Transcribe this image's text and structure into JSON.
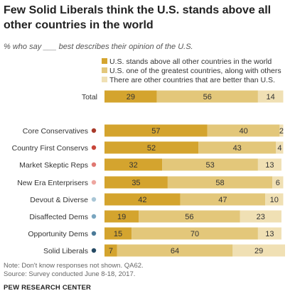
{
  "title": "Few Solid Liberals think the U.S. stands above all other countries in the world",
  "subtitle": "% who say ___ best describes their opinion of the U.S.",
  "note": "Note: Don't know responses not shown. QA62.",
  "source": "Source: Survey conducted June 8-18, 2017.",
  "brand": "PEW RESEARCH CENTER",
  "colors": {
    "s1": "#d4a42e",
    "s2": "#e3c77a",
    "s3": "#f0e0b4",
    "text_dark": "#333333"
  },
  "chart_data": {
    "type": "bar",
    "orientation": "horizontal",
    "stacked": true,
    "xlim": [
      0,
      100
    ],
    "series": [
      {
        "name": "U.S. stands above all other countries in the world"
      },
      {
        "name": "U.S. one of the greatest countries, along with others"
      },
      {
        "name": "There are other countries that are better than U.S."
      }
    ],
    "categories": [
      {
        "label": "Total",
        "dot": null,
        "values": [
          29,
          56,
          14
        ]
      },
      {
        "label": "Core Conservatives",
        "dot": "#a83a2a",
        "values": [
          57,
          40,
          2
        ]
      },
      {
        "label": "Country First Conservs",
        "dot": "#c8463a",
        "values": [
          52,
          43,
          4
        ]
      },
      {
        "label": "Market Skeptic Reps",
        "dot": "#e07872",
        "values": [
          32,
          53,
          13
        ]
      },
      {
        "label": "New Era Enterprisers",
        "dot": "#eea6a0",
        "values": [
          35,
          58,
          6
        ]
      },
      {
        "label": "Devout & Diverse",
        "dot": "#a9c6d6",
        "values": [
          42,
          47,
          10
        ]
      },
      {
        "label": "Disaffected Dems",
        "dot": "#7aa6c0",
        "values": [
          19,
          56,
          23
        ]
      },
      {
        "label": "Opportunity Dems",
        "dot": "#4a7a98",
        "values": [
          15,
          70,
          13
        ]
      },
      {
        "label": "Solid Liberals",
        "dot": "#264a64",
        "values": [
          7,
          64,
          29
        ]
      }
    ]
  }
}
